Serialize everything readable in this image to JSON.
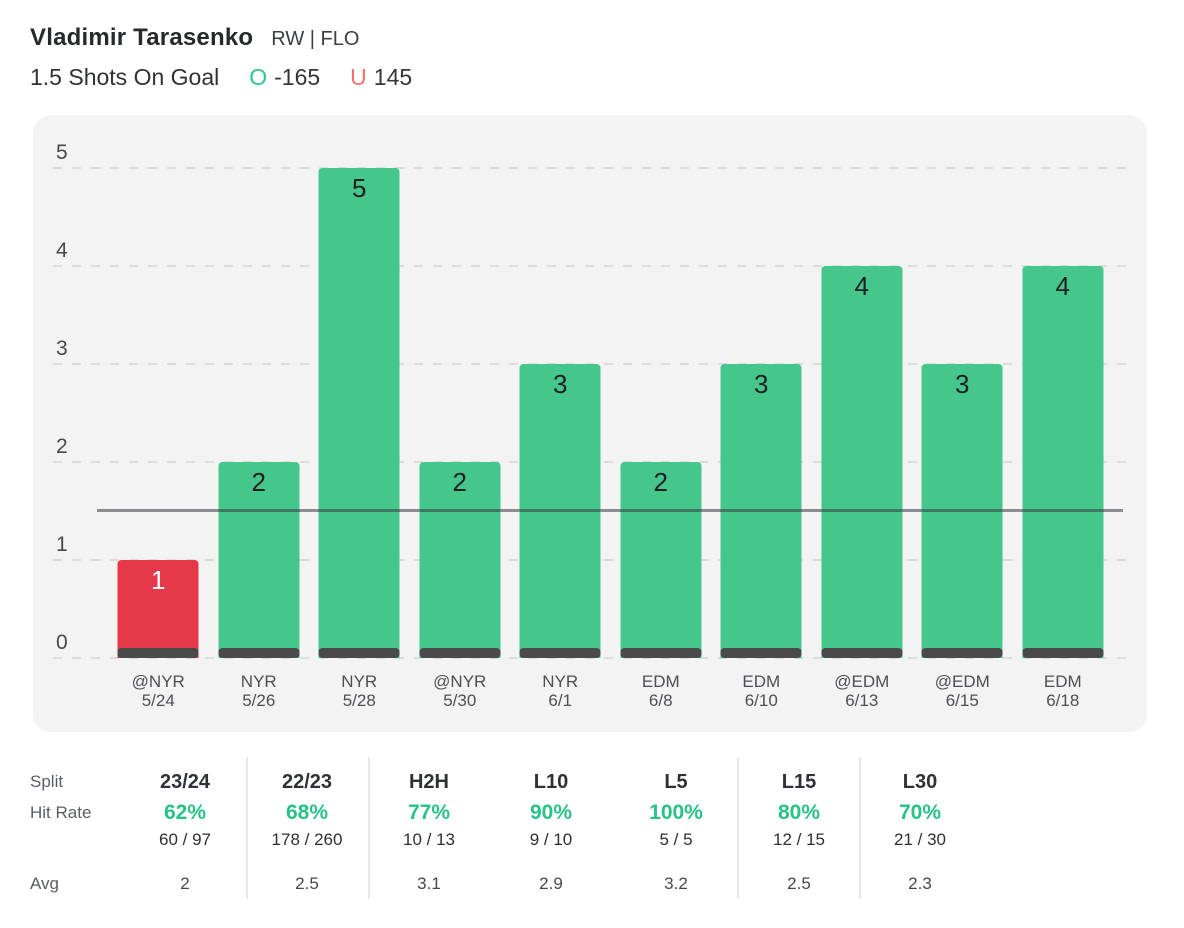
{
  "header": {
    "player_name": "Vladimir Tarasenko",
    "position_team": "RW | FLO",
    "prop_line": "1.5 Shots On Goal",
    "over": {
      "symbol": "O",
      "odds": "-165"
    },
    "under": {
      "symbol": "U",
      "odds": "145"
    }
  },
  "colors": {
    "over_green": "#2fc98b",
    "under_red": "#f17171",
    "bar_hit_green": "#45c78c",
    "bar_miss_red": "#e6384a",
    "bar_base_dark": "#4a4a4a",
    "hit_rate_green": "#27c285",
    "panel_bg": "#f3f3f3"
  },
  "chart_data": {
    "type": "bar",
    "title": "",
    "xlabel": "",
    "ylabel": "",
    "threshold": 1.5,
    "ylim": [
      0,
      5
    ],
    "grid": "dashed-horizontal",
    "y_ticks_desc": [
      "5",
      "4",
      "3",
      "2",
      "1",
      "0"
    ],
    "values": [
      1,
      2,
      5,
      2,
      3,
      2,
      3,
      4,
      3,
      4
    ],
    "games": [
      {
        "team": "@NYR",
        "date": "5/24",
        "value": 1
      },
      {
        "team": "NYR",
        "date": "5/26",
        "value": 2
      },
      {
        "team": "NYR",
        "date": "5/28",
        "value": 5
      },
      {
        "team": "@NYR",
        "date": "5/30",
        "value": 2
      },
      {
        "team": "NYR",
        "date": "6/1",
        "value": 3
      },
      {
        "team": "EDM",
        "date": "6/8",
        "value": 2
      },
      {
        "team": "EDM",
        "date": "6/10",
        "value": 3
      },
      {
        "team": "@EDM",
        "date": "6/13",
        "value": 4
      },
      {
        "team": "@EDM",
        "date": "6/15",
        "value": 3
      },
      {
        "team": "EDM",
        "date": "6/18",
        "value": 4
      }
    ]
  },
  "splits_table": {
    "row_labels": {
      "split": "Split",
      "hit_rate": "Hit Rate",
      "avg": "Avg"
    },
    "columns": [
      {
        "label": "23/24",
        "hit_rate": "62%",
        "fraction": "60 / 97",
        "avg": "2",
        "selected": false
      },
      {
        "label": "22/23",
        "hit_rate": "68%",
        "fraction": "178 / 260",
        "avg": "2.5",
        "selected": false
      },
      {
        "label": "H2H",
        "hit_rate": "77%",
        "fraction": "10 / 13",
        "avg": "3.1",
        "selected": false
      },
      {
        "label": "L10",
        "hit_rate": "90%",
        "fraction": "9 / 10",
        "avg": "2.9",
        "selected": true
      },
      {
        "label": "L5",
        "hit_rate": "100%",
        "fraction": "5 / 5",
        "avg": "3.2",
        "selected": false
      },
      {
        "label": "L15",
        "hit_rate": "80%",
        "fraction": "12 / 15",
        "avg": "2.5",
        "selected": false
      },
      {
        "label": "L30",
        "hit_rate": "70%",
        "fraction": "21 / 30",
        "avg": "2.3",
        "selected": false
      }
    ]
  }
}
